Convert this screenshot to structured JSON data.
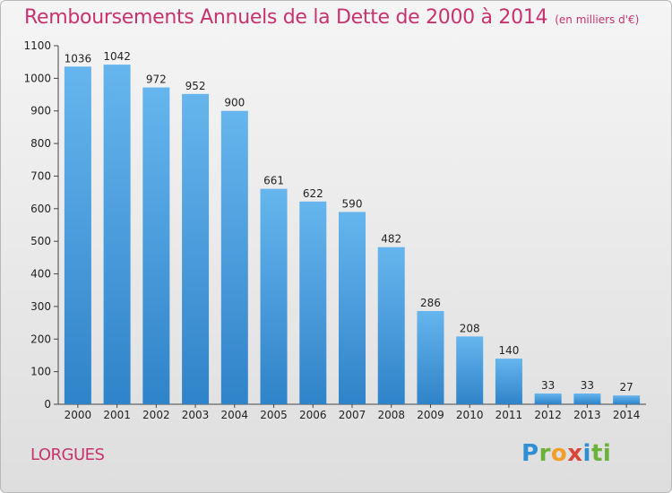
{
  "header": {
    "title": "Remboursements Annuels de la Dette de 2000 à 2014",
    "subtitle": "(en milliers d'€)"
  },
  "footer": {
    "commune": "LORGUES",
    "logo_letters": [
      "P",
      "r",
      "o",
      "x",
      "i",
      "ti"
    ]
  },
  "colors": {
    "title": "#c8336f",
    "bar_top": "#66b5ee",
    "bar_bottom": "#2f83c8",
    "background_top": "#f5f5f5",
    "background_bottom": "#dedede"
  },
  "chart_data": {
    "type": "bar",
    "title": "Remboursements Annuels de la Dette de 2000 à 2014",
    "subtitle": "(en milliers d'€)",
    "xlabel": "",
    "ylabel": "",
    "categories": [
      "2000",
      "2001",
      "2002",
      "2003",
      "2004",
      "2005",
      "2006",
      "2007",
      "2008",
      "2009",
      "2010",
      "2011",
      "2012",
      "2013",
      "2014"
    ],
    "values": [
      1036,
      1042,
      972,
      952,
      900,
      661,
      622,
      590,
      482,
      286,
      208,
      140,
      33,
      33,
      27
    ],
    "ylim": [
      0,
      1100
    ],
    "yticks": [
      0,
      100,
      200,
      300,
      400,
      500,
      600,
      700,
      800,
      900,
      1000,
      1100
    ],
    "grid": false,
    "legend": "none"
  }
}
